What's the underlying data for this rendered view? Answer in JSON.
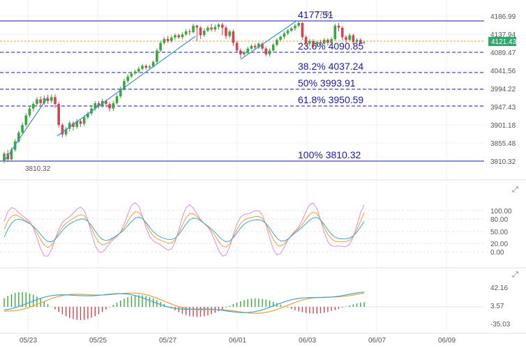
{
  "chart_data": {
    "type": "candlestick",
    "x_ticks": [
      "05/23",
      "05/25",
      "05/27",
      "06/01",
      "06/03",
      "06/07",
      "06/09"
    ],
    "price_ticks": [
      4186.99,
      4137.94,
      4089.47,
      4041.56,
      3994.22,
      3947.43,
      3901.18,
      3855.48,
      3810.32
    ],
    "current_price": "4121.43",
    "fib_levels": [
      {
        "label": "4177.51",
        "value": 4177.51
      },
      {
        "label": "23.6% 4090.85",
        "value": 4090.85
      },
      {
        "label": "38.2% 4037.24",
        "value": 4037.24
      },
      {
        "label": "50% 3993.91",
        "value": 3993.91
      },
      {
        "label": "61.8% 3950.59",
        "value": 3950.59
      },
      {
        "label": "100% 3810.32",
        "value": 3810.32
      }
    ],
    "low_label": "3810.32",
    "high_ghost_label": "77.51",
    "stoch_ticks": [
      100,
      80,
      50,
      20,
      0
    ],
    "macd_ticks": [
      42.16,
      3.57,
      -35.03
    ],
    "colors": {
      "up": "#3aa73a",
      "down": "#d9414f",
      "fib_line": "#1a1aa8",
      "trend_line": "#3d8fd0",
      "price_tag": "#2ea86d",
      "current_line": "#f0a030",
      "stoch_k": "#e08ae0",
      "stoch_d": "#f0a030",
      "stoch_slow": "#3aa7d6",
      "macd_signal": "#f0a030",
      "macd_line": "#3aa7d6"
    },
    "candles": [
      [
        3810,
        3830,
        3805,
        3835
      ],
      [
        3830,
        3815,
        3808,
        3840
      ],
      [
        3815,
        3840,
        3812,
        3846
      ],
      [
        3840,
        3862,
        3835,
        3868
      ],
      [
        3862,
        3885,
        3858,
        3890
      ],
      [
        3885,
        3905,
        3880,
        3912
      ],
      [
        3905,
        3930,
        3900,
        3936
      ],
      [
        3930,
        3948,
        3925,
        3955
      ],
      [
        3948,
        3960,
        3940,
        3966
      ],
      [
        3960,
        3972,
        3955,
        3978
      ],
      [
        3972,
        3962,
        3955,
        3980
      ],
      [
        3962,
        3975,
        3958,
        3982
      ],
      [
        3975,
        3968,
        3960,
        3984
      ],
      [
        3968,
        3978,
        3962,
        3985
      ],
      [
        3978,
        3960,
        3950,
        3985
      ],
      [
        3960,
        3905,
        3898,
        3965
      ],
      [
        3905,
        3880,
        3872,
        3910
      ],
      [
        3880,
        3895,
        3875,
        3900
      ],
      [
        3895,
        3910,
        3888,
        3916
      ],
      [
        3910,
        3900,
        3890,
        3915
      ],
      [
        3900,
        3915,
        3895,
        3920
      ],
      [
        3915,
        3908,
        3900,
        3920
      ],
      [
        3908,
        3925,
        3902,
        3930
      ],
      [
        3925,
        3935,
        3920,
        3940
      ],
      [
        3935,
        3948,
        3930,
        3954
      ],
      [
        3948,
        3962,
        3942,
        3968
      ],
      [
        3962,
        3955,
        3948,
        3968
      ],
      [
        3955,
        3968,
        3950,
        3974
      ],
      [
        3968,
        3960,
        3952,
        3972
      ],
      [
        3960,
        3948,
        3940,
        3965
      ],
      [
        3948,
        3962,
        3942,
        3968
      ],
      [
        3962,
        3980,
        3958,
        3986
      ],
      [
        3980,
        4000,
        3975,
        4006
      ],
      [
        4000,
        4020,
        3995,
        4026
      ],
      [
        4020,
        4032,
        4015,
        4038
      ],
      [
        4032,
        4040,
        4028,
        4045
      ],
      [
        4040,
        4045,
        4036,
        4050
      ],
      [
        4045,
        4052,
        4040,
        4058
      ],
      [
        4052,
        4060,
        4048,
        4065
      ],
      [
        4060,
        4055,
        4050,
        4064
      ],
      [
        4055,
        4058,
        4050,
        4062
      ],
      [
        4058,
        4070,
        4055,
        4075
      ],
      [
        4070,
        4100,
        4066,
        4106
      ],
      [
        4100,
        4120,
        4096,
        4126
      ],
      [
        4120,
        4130,
        4115,
        4136
      ],
      [
        4130,
        4125,
        4120,
        4138
      ],
      [
        4125,
        4134,
        4120,
        4140
      ],
      [
        4134,
        4140,
        4128,
        4145
      ],
      [
        4140,
        4135,
        4130,
        4144
      ],
      [
        4135,
        4142,
        4130,
        4148
      ],
      [
        4142,
        4150,
        4138,
        4156
      ],
      [
        4150,
        4148,
        4140,
        4156
      ],
      [
        4148,
        4165,
        4145,
        4170
      ],
      [
        4165,
        4160,
        4125,
        4168
      ],
      [
        4160,
        4140,
        4130,
        4164
      ],
      [
        4140,
        4152,
        4136,
        4158
      ],
      [
        4152,
        4160,
        4148,
        4165
      ],
      [
        4160,
        4155,
        4150,
        4170
      ],
      [
        4155,
        4162,
        4150,
        4168
      ],
      [
        4162,
        4168,
        4155,
        4172
      ],
      [
        4168,
        4160,
        4140,
        4172
      ],
      [
        4160,
        4138,
        4130,
        4165
      ],
      [
        4138,
        4150,
        4132,
        4155
      ],
      [
        4150,
        4120,
        4112,
        4155
      ],
      [
        4120,
        4100,
        4095,
        4125
      ],
      [
        4100,
        4090,
        4080,
        4105
      ],
      [
        4090,
        4095,
        4085,
        4100
      ],
      [
        4095,
        4105,
        4090,
        4110
      ],
      [
        4105,
        4112,
        4100,
        4116
      ],
      [
        4112,
        4108,
        4102,
        4118
      ],
      [
        4108,
        4118,
        4104,
        4122
      ],
      [
        4118,
        4105,
        4100,
        4122
      ],
      [
        4105,
        4090,
        4085,
        4110
      ],
      [
        4090,
        4100,
        4084,
        4105
      ],
      [
        4100,
        4115,
        4096,
        4120
      ],
      [
        4115,
        4128,
        4110,
        4132
      ],
      [
        4128,
        4136,
        4124,
        4140
      ],
      [
        4136,
        4145,
        4130,
        4150
      ],
      [
        4145,
        4152,
        4140,
        4156
      ],
      [
        4152,
        4158,
        4148,
        4162
      ],
      [
        4158,
        4165,
        4152,
        4170
      ],
      [
        4165,
        4172,
        4160,
        4177
      ],
      [
        4172,
        4135,
        4128,
        4175
      ],
      [
        4135,
        4118,
        4110,
        4140
      ],
      [
        4118,
        4125,
        4112,
        4130
      ],
      [
        4125,
        4115,
        4108,
        4130
      ],
      [
        4115,
        4122,
        4110,
        4126
      ],
      [
        4122,
        4118,
        4112,
        4128
      ],
      [
        4118,
        4128,
        4114,
        4132
      ],
      [
        4128,
        4120,
        4114,
        4132
      ],
      [
        4120,
        4130,
        4116,
        4135
      ],
      [
        4130,
        4165,
        4126,
        4170
      ],
      [
        4165,
        4160,
        4150,
        4172
      ],
      [
        4160,
        4135,
        4128,
        4164
      ],
      [
        4135,
        4128,
        4120,
        4140
      ],
      [
        4128,
        4140,
        4124,
        4145
      ],
      [
        4140,
        4122,
        4116,
        4144
      ],
      [
        4122,
        4128,
        4118,
        4132
      ],
      [
        4128,
        4120,
        4116,
        4132
      ],
      [
        4120,
        4122,
        4116,
        4126
      ]
    ]
  }
}
